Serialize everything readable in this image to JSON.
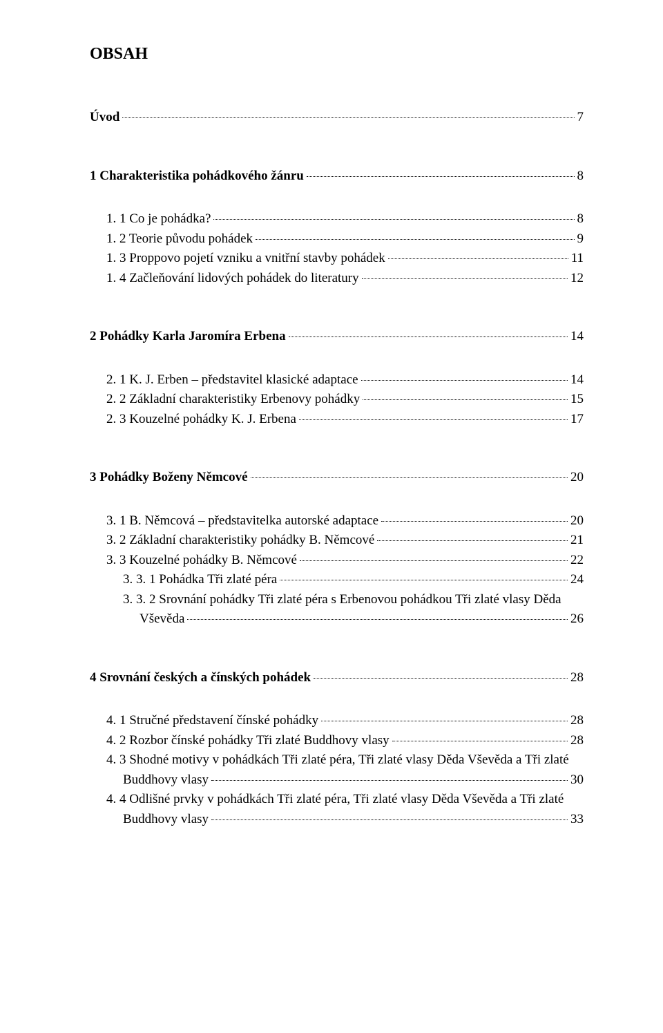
{
  "title": "OBSAH",
  "colors": {
    "text": "#000000",
    "background": "#ffffff"
  },
  "font": {
    "family": "Times New Roman",
    "body_size_pt": 14,
    "title_size_pt": 18
  },
  "toc": {
    "uvod": {
      "label": "Úvod",
      "page": "7"
    },
    "s1": {
      "label": "1  Charakteristika pohádkového žánru",
      "page": "8"
    },
    "s1_1": {
      "label": "1. 1  Co je pohádka?",
      "page": "8"
    },
    "s1_2": {
      "label": "1. 2  Teorie původu pohádek",
      "page": "9"
    },
    "s1_3": {
      "label": "1. 3  Proppovo pojetí vzniku a vnitřní stavby pohádek",
      "page": "11"
    },
    "s1_4": {
      "label": "1. 4  Začleňování lidových pohádek do literatury",
      "page": "12"
    },
    "s2": {
      "label": "2  Pohádky Karla Jaromíra Erbena",
      "page": "14"
    },
    "s2_1": {
      "label": "2. 1  K. J. Erben – představitel klasické adaptace",
      "page": "14"
    },
    "s2_2": {
      "label": "2. 2  Základní charakteristiky Erbenovy pohádky",
      "page": "15"
    },
    "s2_3": {
      "label": "2. 3  Kouzelné pohádky K. J. Erbena",
      "page": "17"
    },
    "s3": {
      "label": "3  Pohádky Boženy Němcové",
      "page": "20"
    },
    "s3_1": {
      "label": "3. 1  B. Němcová – představitelka autorské adaptace",
      "page": "20"
    },
    "s3_2": {
      "label": "3. 2  Základní charakteristiky pohádky B. Němcové",
      "page": "21"
    },
    "s3_3": {
      "label": "3. 3  Kouzelné pohádky B. Němcové",
      "page": "22"
    },
    "s3_3_1": {
      "label": "3. 3. 1  Pohádka Tři zlaté péra",
      "page": "24"
    },
    "s3_3_2a": {
      "label": "3. 3. 2  Srovnání  pohádky  Tři  zlaté  péra s  Erbenovou pohádkou  Tři  zlaté  vlasy  Děda"
    },
    "s3_3_2b": {
      "label": "Vševěda",
      "page": "26"
    },
    "s4": {
      "label": "4  Srovnání českých a čínských pohádek",
      "page": "28"
    },
    "s4_1": {
      "label": "4. 1  Stručné představení čínské pohádky",
      "page": "28"
    },
    "s4_2": {
      "label": "4. 2  Rozbor čínské pohádky Tři zlaté Buddhovy vlasy",
      "page": "28"
    },
    "s4_3a": {
      "label": "4. 3  Shodné motivy v pohádkách  Tři  zlaté péra, Tři zlaté vlasy  Děda  Vševěda a Tři zlaté"
    },
    "s4_3b": {
      "label": "Buddhovy vlasy",
      "page": "30"
    },
    "s4_4a": {
      "label": "4. 4  Odlišné  prvky  v  pohádkách   Tři zlaté péra, Tři zlaté  vlasy Děda  Vševěda a Tři zlaté"
    },
    "s4_4b": {
      "label": "Buddhovy vlasy",
      "page": "33"
    }
  }
}
